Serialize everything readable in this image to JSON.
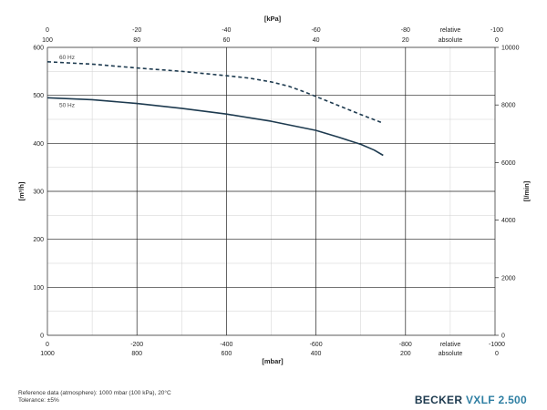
{
  "chart_data": {
    "type": "line",
    "ylabel_left": "[m³/h]",
    "ylabel_right": "[l/min]",
    "xlabel_bottom": "[mbar]",
    "xlabel_top": "[kPa]",
    "ylim_left": [
      0,
      600
    ],
    "yticks_left": [
      "0",
      "100",
      "200",
      "300",
      "400",
      "500",
      "600"
    ],
    "ylim_right": [
      0,
      10000
    ],
    "yticks_right": [
      "0",
      "2000",
      "4000",
      "6000",
      "8000",
      "10000"
    ],
    "xlim_bottom_relative": [
      0,
      -1000
    ],
    "xticks_bottom_relative": [
      "0",
      "-200",
      "-400",
      "-600",
      "-800",
      "-1000"
    ],
    "xticks_bottom_absolute": [
      "1000",
      "800",
      "600",
      "400",
      "200",
      "0"
    ],
    "xticks_top_relative": [
      "0",
      "-20",
      "-40",
      "-60",
      "-80",
      "-100"
    ],
    "xticks_top_absolute": [
      "100",
      "80",
      "60",
      "40",
      "20",
      "0"
    ],
    "label_relative": "relative",
    "label_absolute": "absolute",
    "grid": true,
    "series": [
      {
        "name": "60 Hz",
        "style": "dashed",
        "color": "#1d3a4f",
        "x": [
          0,
          -100,
          -200,
          -300,
          -400,
          -450,
          -500,
          -540,
          -580,
          -620,
          -660,
          -700,
          -750
        ],
        "y": [
          570,
          565,
          557,
          550,
          541,
          536,
          528,
          519,
          505,
          490,
          475,
          460,
          442
        ]
      },
      {
        "name": "50 Hz",
        "style": "solid",
        "color": "#1d3a4f",
        "x": [
          0,
          -100,
          -200,
          -300,
          -400,
          -500,
          -600,
          -650,
          -700,
          -730,
          -750
        ],
        "y": [
          495,
          491,
          483,
          473,
          461,
          446,
          427,
          413,
          398,
          386,
          375
        ]
      }
    ]
  },
  "footer": {
    "reference": "Reference data (atmosphere): 1000 mbar (100 kPa), 20°C",
    "tolerance": "Tolerance: ±5%"
  },
  "brand": {
    "name": "BECKER",
    "model": "VXLF 2.500",
    "colors": {
      "name": "#1d3a4f",
      "model": "#2f7fa3"
    }
  }
}
